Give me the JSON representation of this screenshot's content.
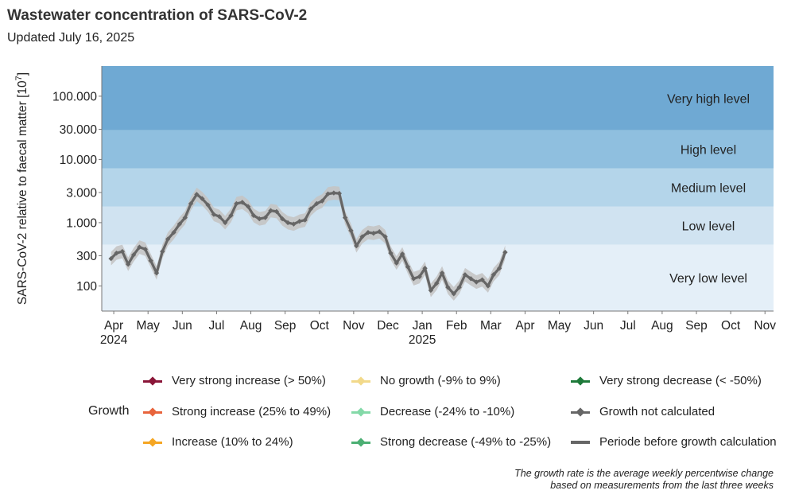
{
  "header": {
    "title": "Wastewater concentration of SARS-CoV-2",
    "subtitle": "Updated July 16, 2025"
  },
  "chart_data": {
    "type": "line",
    "y_scale": "log",
    "ylabel": "SARS-CoV-2 relative to faecal matter [10",
    "ylabel_exponent": "7",
    "ylabel_end": "]",
    "ylim": [
      40,
      300000
    ],
    "y_ticks": [
      {
        "value": 100,
        "label": "100"
      },
      {
        "value": 300,
        "label": "300"
      },
      {
        "value": 1000,
        "label": "1.000"
      },
      {
        "value": 3000,
        "label": "3.000"
      },
      {
        "value": 10000,
        "label": "10.000"
      },
      {
        "value": 30000,
        "label": "30.000"
      },
      {
        "value": 100000,
        "label": "100.000"
      }
    ],
    "x_ticks": [
      {
        "month": 0,
        "label": "Apr",
        "year": "2024"
      },
      {
        "month": 1,
        "label": "May"
      },
      {
        "month": 2,
        "label": "Jun"
      },
      {
        "month": 3,
        "label": "Jul"
      },
      {
        "month": 4,
        "label": "Aug"
      },
      {
        "month": 5,
        "label": "Sep"
      },
      {
        "month": 6,
        "label": "Oct"
      },
      {
        "month": 7,
        "label": "Nov"
      },
      {
        "month": 8,
        "label": "Dec"
      },
      {
        "month": 9,
        "label": "Jan",
        "year": "2025"
      },
      {
        "month": 10,
        "label": "Feb"
      },
      {
        "month": 11,
        "label": "Mar"
      },
      {
        "month": 12,
        "label": "Apr"
      },
      {
        "month": 13,
        "label": "May"
      },
      {
        "month": 14,
        "label": "Jun"
      },
      {
        "month": 15,
        "label": "Jul"
      },
      {
        "month": 16,
        "label": "Aug"
      },
      {
        "month": 17,
        "label": "Sep"
      },
      {
        "month": 18,
        "label": "Oct"
      },
      {
        "month": 19,
        "label": "Nov"
      }
    ],
    "x_range_months": [
      -0.35,
      19.25
    ],
    "bands": [
      {
        "label": "Very low level",
        "from": 40,
        "to": 450,
        "color": "#e4eff8"
      },
      {
        "label": "Low level",
        "from": 450,
        "to": 1800,
        "color": "#d0e3f1"
      },
      {
        "label": "Medium level",
        "from": 1800,
        "to": 7200,
        "color": "#b4d5ea"
      },
      {
        "label": "High level",
        "from": 7200,
        "to": 29000,
        "color": "#8fbfdf"
      },
      {
        "label": "Very high level",
        "from": 29000,
        "to": 300000,
        "color": "#6fa9d3"
      }
    ],
    "series": [
      {
        "name": "Growth not calculated",
        "color": "#666666",
        "ci_color": "#c4c4c4",
        "points": [
          [
            -0.08,
            270
          ],
          [
            0.08,
            330
          ],
          [
            0.25,
            350
          ],
          [
            0.42,
            220
          ],
          [
            0.58,
            310
          ],
          [
            0.75,
            410
          ],
          [
            0.92,
            380
          ],
          [
            1.08,
            250
          ],
          [
            1.25,
            160
          ],
          [
            1.42,
            350
          ],
          [
            1.58,
            550
          ],
          [
            1.75,
            700
          ],
          [
            1.92,
            950
          ],
          [
            2.08,
            1200
          ],
          [
            2.25,
            2000
          ],
          [
            2.42,
            2800
          ],
          [
            2.58,
            2400
          ],
          [
            2.75,
            1900
          ],
          [
            2.92,
            1350
          ],
          [
            3.08,
            1250
          ],
          [
            3.25,
            1000
          ],
          [
            3.42,
            1300
          ],
          [
            3.58,
            2000
          ],
          [
            3.75,
            2100
          ],
          [
            3.92,
            1800
          ],
          [
            4.08,
            1300
          ],
          [
            4.25,
            1150
          ],
          [
            4.42,
            1200
          ],
          [
            4.58,
            1550
          ],
          [
            4.75,
            1500
          ],
          [
            4.92,
            1150
          ],
          [
            5.08,
            1000
          ],
          [
            5.25,
            950
          ],
          [
            5.42,
            1050
          ],
          [
            5.58,
            1100
          ],
          [
            5.75,
            1650
          ],
          [
            5.92,
            2000
          ],
          [
            6.08,
            2200
          ],
          [
            6.25,
            2850
          ],
          [
            6.42,
            2950
          ],
          [
            6.58,
            2900
          ],
          [
            6.75,
            1200
          ],
          [
            6.92,
            750
          ],
          [
            7.08,
            430
          ],
          [
            7.25,
            600
          ],
          [
            7.42,
            700
          ],
          [
            7.58,
            680
          ],
          [
            7.75,
            720
          ],
          [
            7.92,
            600
          ],
          [
            8.08,
            330
          ],
          [
            8.25,
            230
          ],
          [
            8.42,
            320
          ],
          [
            8.58,
            200
          ],
          [
            8.75,
            130
          ],
          [
            8.92,
            140
          ],
          [
            9.08,
            190
          ],
          [
            9.25,
            85
          ],
          [
            9.42,
            110
          ],
          [
            9.58,
            160
          ],
          [
            9.75,
            95
          ],
          [
            9.92,
            75
          ],
          [
            10.08,
            95
          ],
          [
            10.25,
            150
          ],
          [
            10.42,
            130
          ],
          [
            10.58,
            115
          ],
          [
            10.75,
            125
          ],
          [
            10.92,
            100
          ],
          [
            11.08,
            150
          ],
          [
            11.25,
            190
          ],
          [
            11.42,
            340
          ]
        ]
      }
    ],
    "legend": {
      "title": "Growth",
      "items": [
        {
          "label": "Very strong increase (> 50%)",
          "color": "#8a1538"
        },
        {
          "label": "Strong increase (25% to 49%)",
          "color": "#e8643c"
        },
        {
          "label": "Increase (10% to 24%)",
          "color": "#f5a623"
        },
        {
          "label": "No growth (-9% to 9%)",
          "color": "#f2d98a"
        },
        {
          "label": "Decrease (-24% to -10%)",
          "color": "#84d9a8"
        },
        {
          "label": "Strong decrease (-49% to -25%)",
          "color": "#4caf73"
        },
        {
          "label": "Very strong decrease (< -50%)",
          "color": "#1e7a3a"
        },
        {
          "label": "Growth not calculated",
          "color": "#666666"
        },
        {
          "label": "Periode before growth calculation",
          "color": "#666666"
        }
      ]
    }
  },
  "footnote": {
    "line1": "The growth rate is the average weekly percentwise change",
    "line2": "based on measurements from the last three weeks"
  }
}
